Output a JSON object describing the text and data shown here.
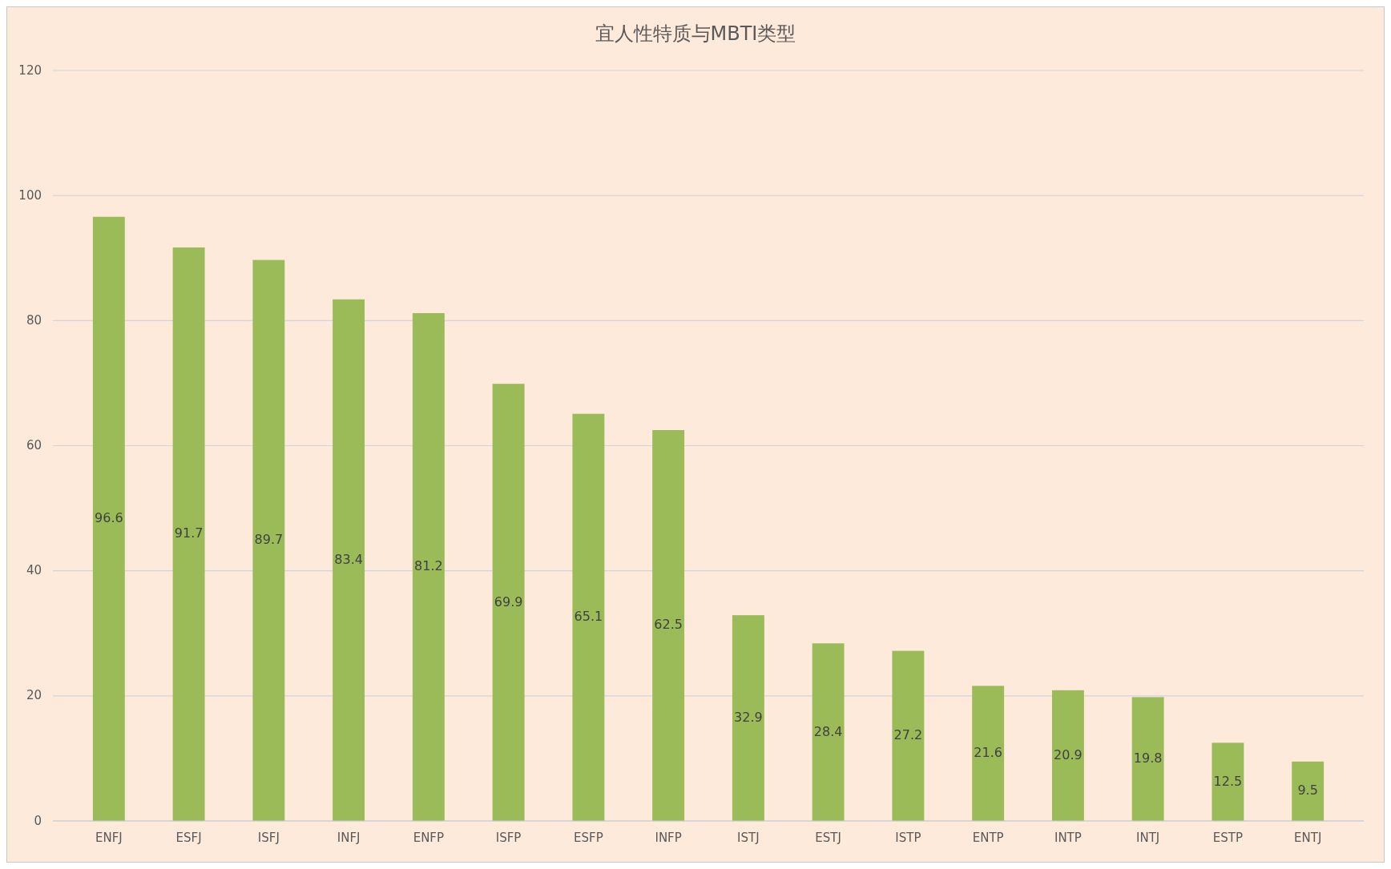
{
  "chart_data": {
    "type": "bar",
    "title": "宜人性特质与MBTI类型",
    "categories": [
      "ENFJ",
      "ESFJ",
      "ISFJ",
      "INFJ",
      "ENFP",
      "ISFP",
      "ESFP",
      "INFP",
      "ISTJ",
      "ESTJ",
      "ISTP",
      "ENTP",
      "INTP",
      "INTJ",
      "ESTP",
      "ENTJ"
    ],
    "values": [
      96.6,
      91.7,
      89.7,
      83.4,
      81.2,
      69.9,
      65.1,
      62.5,
      32.9,
      28.4,
      27.2,
      21.6,
      20.9,
      19.8,
      12.5,
      9.5
    ],
    "color": "#9bbb59",
    "ylim": [
      0,
      120
    ],
    "yticks": [
      0,
      20,
      40,
      60,
      80,
      100,
      120
    ],
    "grid": "y",
    "data_labels": true
  }
}
